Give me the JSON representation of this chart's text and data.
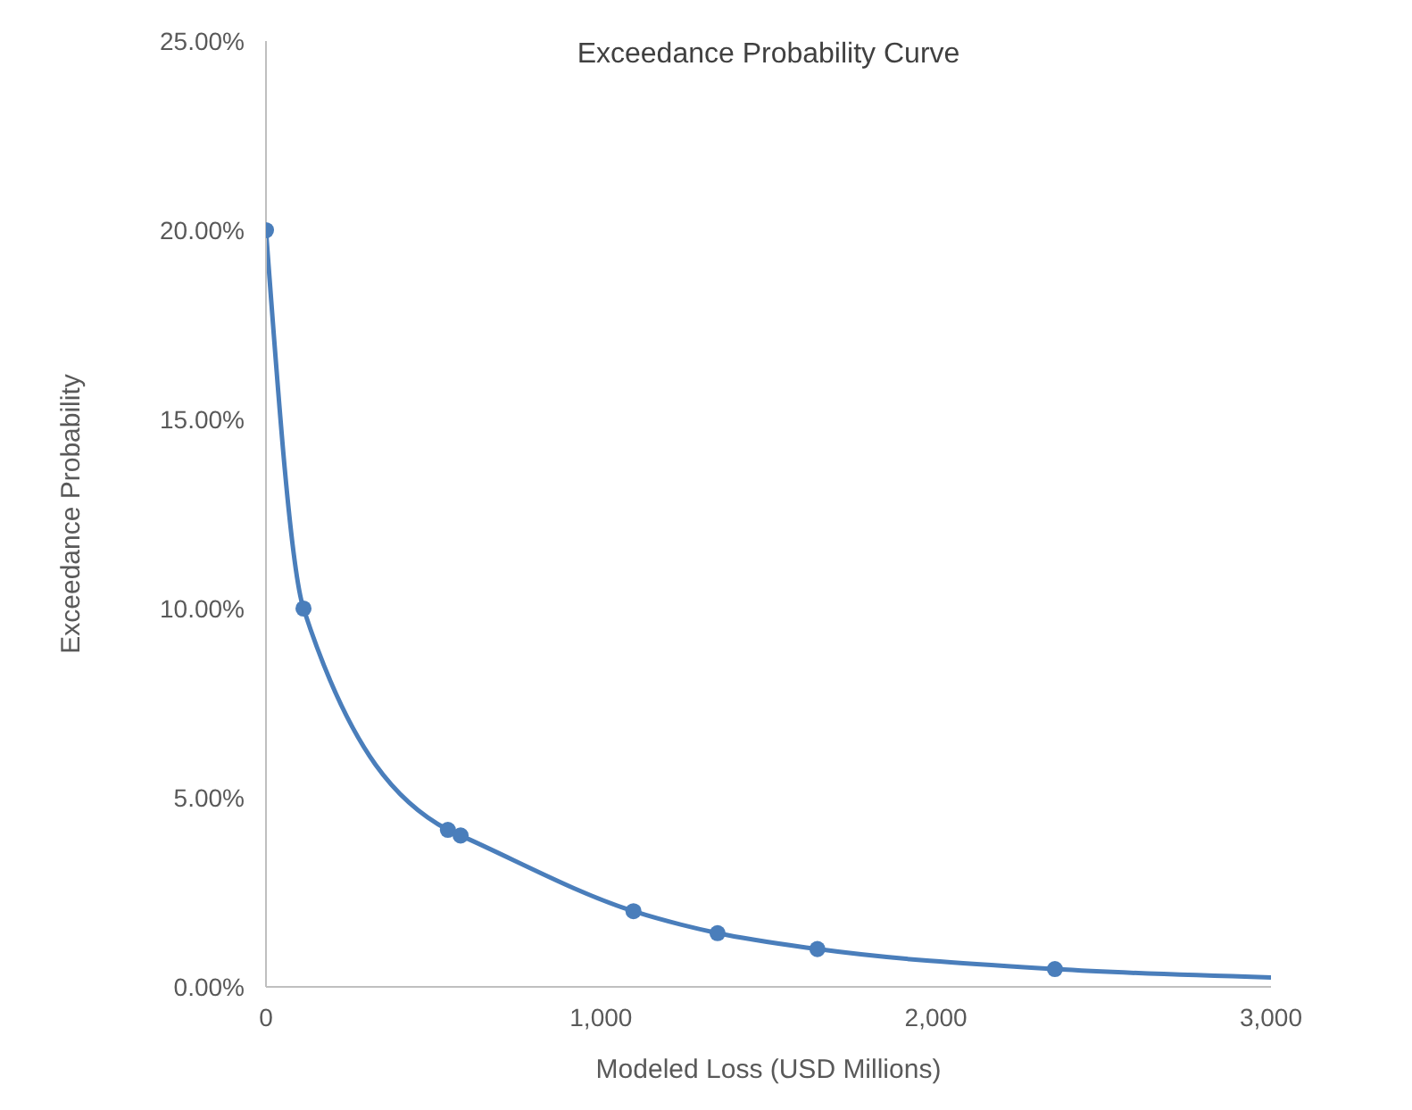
{
  "chart_data": {
    "type": "line",
    "title": "Exceedance Probability Curve",
    "xlabel": "Modeled Loss   (USD Millions)",
    "ylabel": "Exceedance Probability",
    "series": [
      {
        "marker": "none",
        "color": "#4a7ebb",
        "x": [
          0,
          112,
          543,
          581,
          1097,
          1348,
          1646,
          2355,
          3000
        ],
        "values": [
          20,
          10,
          4.15,
          4,
          2,
          1.42,
          1,
          0.47,
          0.25
        ]
      },
      {
        "type": "scatter",
        "marker": "circle",
        "color": "#4a7ebb",
        "x": [
          0,
          112,
          543,
          581,
          1097,
          1348,
          1646,
          2355
        ],
        "values": [
          20,
          10,
          4.15,
          4,
          2,
          1.42,
          1,
          0.47
        ]
      }
    ],
    "xlim": [
      0,
      3000
    ],
    "xticks": [
      {
        "value": 0,
        "label": "0"
      },
      {
        "value": 1000,
        "label": "1,000"
      },
      {
        "value": 2000,
        "label": "2,000"
      },
      {
        "value": 3000,
        "label": "3,000"
      }
    ],
    "ylim": [
      0,
      25
    ],
    "yticks": [
      {
        "value": 0,
        "label": "0.00%"
      },
      {
        "value": 5,
        "label": "5.00%"
      },
      {
        "value": 10,
        "label": "10.00%"
      },
      {
        "value": 15,
        "label": "15.00%"
      },
      {
        "value": 20,
        "label": "20.00%"
      },
      {
        "value": 25,
        "label": "25.00%"
      }
    ],
    "grid": false
  }
}
